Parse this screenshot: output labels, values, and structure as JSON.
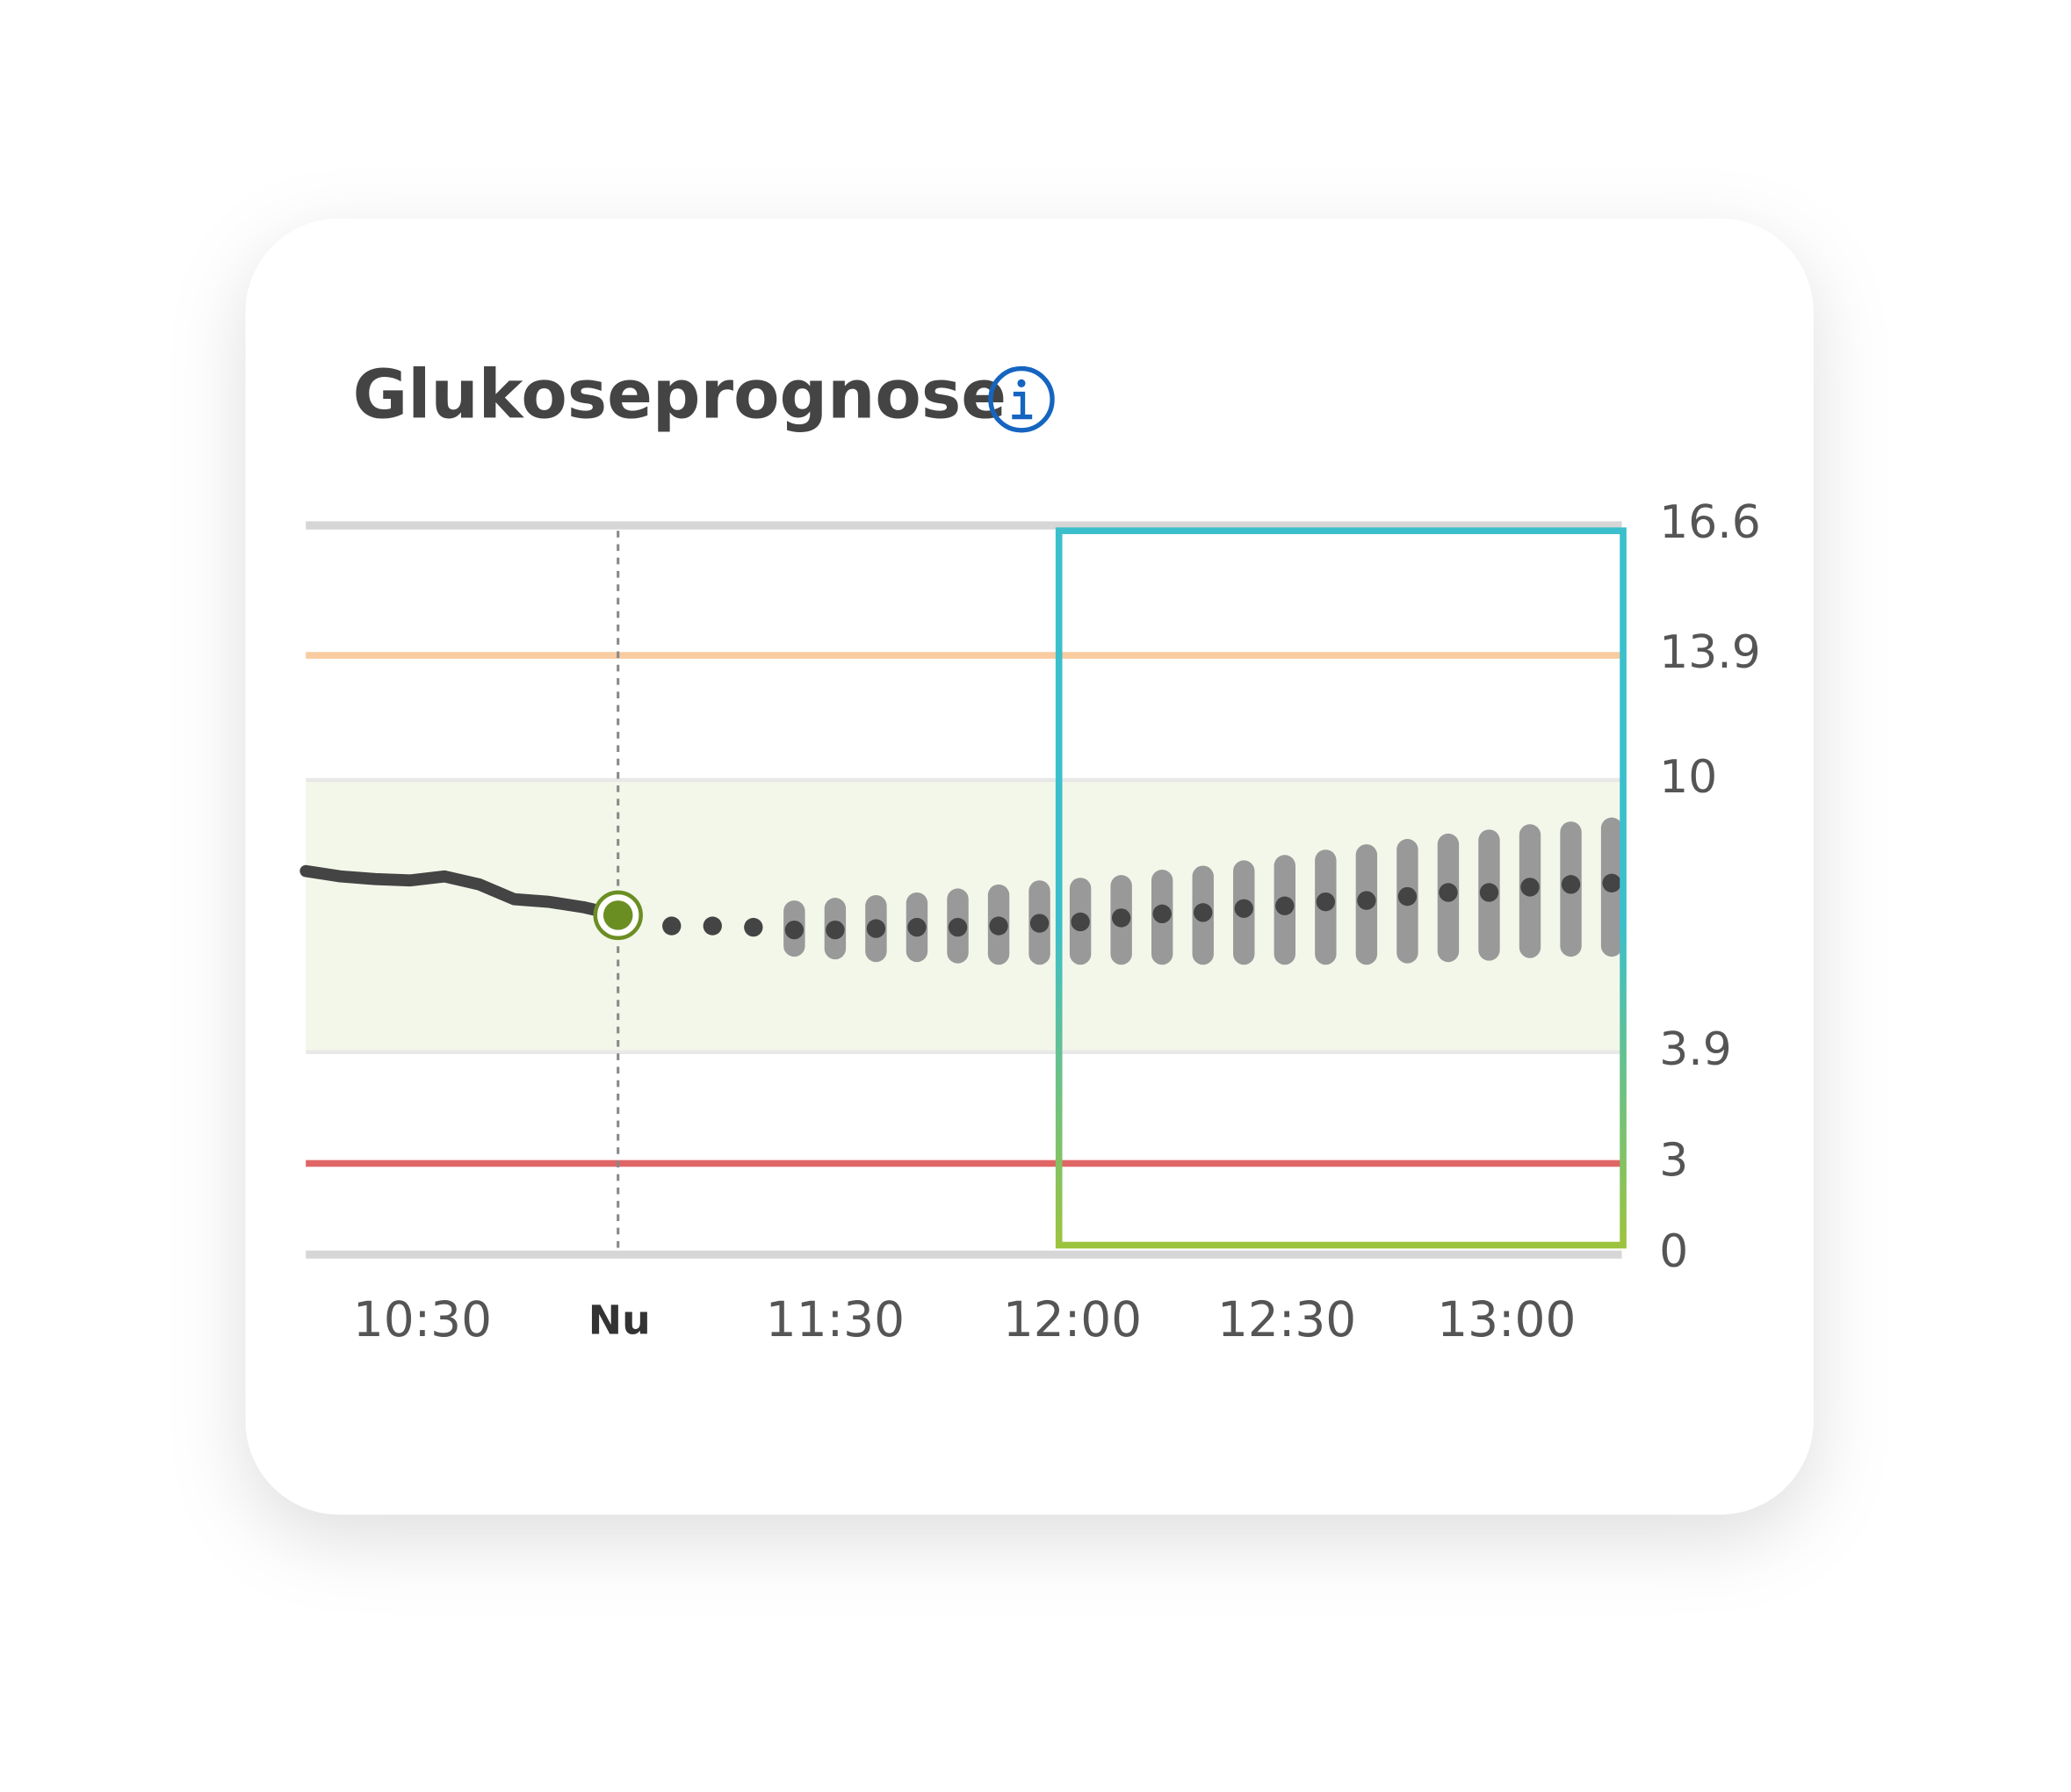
{
  "title": "Glukoseprognose",
  "chart_data": {
    "type": "forecast",
    "x_labels": [
      "10:30",
      "Nu",
      "11:30",
      "12:00",
      "12:30",
      "13:00"
    ],
    "ylim": [
      0,
      16.6
    ],
    "yticks": [
      0,
      3,
      3.9,
      10,
      13.9,
      16.6
    ],
    "target_range": [
      3.9,
      10
    ],
    "target_color": "#f3f7ea",
    "high_limit": 13.9,
    "high_color": "#f9cba0",
    "low_limit": 3,
    "low_color": "#e06666",
    "history": {
      "color": "#444444",
      "values": [
        7.96,
        7.84,
        7.78,
        7.75,
        7.84,
        7.66,
        7.33,
        7.27,
        7.15,
        6.97
      ]
    },
    "current": {
      "color": "#6b8e23",
      "value": 6.97
    },
    "forecast": {
      "color": "#444444",
      "band_color": "#999999",
      "values": [
        6.73,
        6.73,
        6.7,
        6.64,
        6.64,
        6.67,
        6.7,
        6.7,
        6.73,
        6.79,
        6.82,
        6.91,
        7.0,
        7.03,
        7.12,
        7.18,
        7.27,
        7.3,
        7.39,
        7.48,
        7.48,
        7.6,
        7.66,
        7.69
      ],
      "high": [
        null,
        null,
        null,
        7.06,
        7.12,
        7.18,
        7.24,
        7.33,
        7.42,
        7.51,
        7.57,
        7.63,
        7.75,
        7.84,
        7.96,
        8.08,
        8.2,
        8.32,
        8.44,
        8.56,
        8.65,
        8.77,
        8.83,
        8.92
      ],
      "low": [
        null,
        null,
        null,
        6.28,
        6.22,
        6.16,
        6.16,
        6.13,
        6.1,
        6.1,
        6.1,
        6.1,
        6.1,
        6.1,
        6.1,
        6.1,
        6.1,
        6.1,
        6.13,
        6.16,
        6.19,
        6.25,
        6.28,
        6.28
      ]
    }
  }
}
